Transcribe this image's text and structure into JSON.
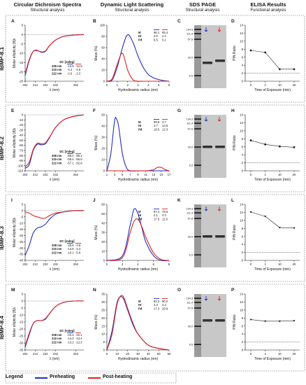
{
  "columns": [
    {
      "title": "Circular Dichroism Spectra",
      "subtitle": "Structural analysis"
    },
    {
      "title": "Dynamic Light Scattering",
      "subtitle": "Structural analysis"
    },
    {
      "title": "SDS PAGE",
      "subtitle": "Structural analysis"
    },
    {
      "title": "ELISA Results",
      "subtitle": "Functional analysis"
    }
  ],
  "rows": [
    {
      "label": "IBMP-8.1",
      "panels": [
        "A",
        "B",
        "C",
        "D"
      ]
    },
    {
      "label": "IBMP-8.2",
      "panels": [
        "E",
        "F",
        "G",
        "H"
      ]
    },
    {
      "label": "IBMP-8.3",
      "panels": [
        "I",
        "J",
        "K",
        "L"
      ]
    },
    {
      "label": "IBMP-8.4",
      "panels": [
        "M",
        "N",
        "O",
        "P"
      ]
    }
  ],
  "legend": {
    "title": "Legend",
    "items": [
      {
        "label": "Preheating",
        "color": "#1f2fbf"
      },
      {
        "label": "Post-heating",
        "color": "#e02020"
      }
    ]
  },
  "colors": {
    "pre": "#1f2fbf",
    "post": "#e02020"
  },
  "chart_data": [
    {
      "type": "line",
      "panel": "A",
      "row": "IBMP-8.1",
      "ylabel": "Molar ellipticity [θ]λ",
      "xlabel": "λ (nm)",
      "xlim": [
        202,
        260
      ],
      "ylim": [
        -25,
        5
      ],
      "xticks": [
        202,
        212,
        222,
        232,
        252
      ],
      "yticks": [
        5,
        0,
        -5,
        -10,
        -15,
        -20,
        -25
      ],
      "x": [
        202,
        206,
        210,
        214,
        218,
        222,
        226,
        232,
        240,
        250,
        260
      ],
      "series": [
        {
          "name": "Preheating",
          "values": [
            -22,
            -14,
            -9,
            -8.5,
            -9.5,
            -9,
            -6,
            -3,
            -1,
            -0.3,
            0
          ]
        },
        {
          "name": "Post-heating",
          "values": [
            -21,
            -13.5,
            -9,
            -8.7,
            -9.3,
            -8.8,
            -6,
            -3,
            -1,
            -0.3,
            0
          ]
        }
      ],
      "dc_table": {
        "header": "DC [mdeg]",
        "rows": [
          [
            "208 nm",
            "-13.5",
            "-12.9"
          ],
          [
            "215 nm",
            "-4.4",
            "-4.6"
          ],
          [
            "222 nm",
            "-2.6",
            "-2.3"
          ]
        ]
      }
    },
    {
      "type": "line",
      "panel": "B",
      "row": "IBMP-8.1",
      "ylabel": "Mass (%)",
      "xlabel": "Hydrodinamic radius (nm)",
      "xlim": [
        0,
        6
      ],
      "ylim": [
        0,
        100
      ],
      "xticks": [
        0,
        1,
        2,
        3,
        4,
        5,
        6
      ],
      "yticks": [
        0,
        20,
        40,
        60,
        80,
        100
      ],
      "x": [
        0,
        0.5,
        1,
        1.5,
        2,
        2.5,
        3,
        3.5,
        4,
        4.5,
        5,
        5.5,
        6
      ],
      "series": [
        {
          "name": "Preheating",
          "values": [
            0,
            2,
            25,
            60,
            83,
            70,
            45,
            25,
            12,
            6,
            3,
            1,
            0
          ]
        },
        {
          "name": "Post-heating",
          "values": [
            0,
            4,
            30,
            50,
            20,
            3,
            0,
            0,
            0,
            0,
            0,
            0,
            0
          ]
        }
      ],
      "stats": {
        "rows": [
          [
            "M",
            "96.1",
            "65.4"
          ],
          [
            "Hr",
            "2.8",
            "2.4"
          ],
          [
            "Pd",
            "6.5",
            "5.1"
          ]
        ]
      }
    },
    {
      "type": "line",
      "panel": "D",
      "row": "IBMP-8.1",
      "ylabel": "P/N Ratio",
      "xlabel": "Time of Exposure (min)",
      "categories": [
        "0",
        "1",
        "10",
        "20"
      ],
      "ylim": [
        0,
        14
      ],
      "yticks": [
        0,
        2,
        4,
        6,
        8,
        10,
        12,
        14
      ],
      "cutoff": 2,
      "values": [
        7.7,
        7.2,
        3.0,
        3.0
      ]
    },
    {
      "type": "line",
      "panel": "E",
      "row": "IBMP-8.2",
      "ylabel": "Molar ellipticity [θ]λ",
      "xlabel": "λ (nm)",
      "xlim": [
        202,
        260
      ],
      "ylim": [
        -110,
        0
      ],
      "xticks": [
        202,
        212,
        222,
        232,
        252
      ],
      "yticks": [
        0,
        -10,
        -20,
        -30,
        -40,
        -50,
        -60,
        -70,
        -80,
        -90,
        -100,
        -110
      ],
      "x": [
        202,
        206,
        210,
        214,
        218,
        222,
        226,
        232,
        240,
        250,
        260
      ],
      "series": [
        {
          "name": "Preheating",
          "values": [
            -105,
            -98,
            -70,
            -58,
            -59,
            -57,
            -45,
            -25,
            -10,
            -3,
            0
          ]
        },
        {
          "name": "Post-heating",
          "values": [
            -102,
            -93,
            -68,
            -56,
            -57,
            -55,
            -44,
            -25,
            -10,
            -3,
            0
          ]
        }
      ],
      "dc_table": {
        "header": "DC [mdeg]",
        "rows": [
          [
            "208 nm",
            "-88.4",
            "-85.1"
          ],
          [
            "215 nm",
            "-58.4",
            "-55.9"
          ],
          [
            "222 nm",
            "-57.1",
            "-52.8"
          ]
        ]
      }
    },
    {
      "type": "line",
      "panel": "F",
      "row": "IBMP-8.2",
      "ylabel": "Mass (%)",
      "xlabel": "Hydrodinamic radius (nm)",
      "xlim": [
        1,
        17
      ],
      "ylim": [
        0,
        50
      ],
      "xticks": [
        1,
        3,
        5,
        7,
        9,
        11,
        13,
        15,
        17
      ],
      "yticks": [
        0,
        10,
        20,
        30,
        40,
        50
      ],
      "x": [
        1,
        2,
        3,
        3.5,
        4,
        5,
        6,
        7,
        9,
        11,
        13,
        14,
        15,
        16,
        17
      ],
      "series": [
        {
          "name": "Preheating",
          "values": [
            0,
            15,
            45,
            46,
            40,
            15,
            3,
            0,
            0,
            0,
            0,
            0,
            0,
            0,
            0
          ]
        },
        {
          "name": "Post-heating",
          "values": [
            0,
            0,
            0,
            0,
            0,
            0,
            0,
            0,
            0,
            0,
            1,
            3,
            3,
            1,
            0
          ]
        }
      ],
      "stats": {
        "rows": [
          [
            "M",
            "99.8",
            "4.7"
          ],
          [
            "Hr",
            "3.7",
            "12.5"
          ],
          [
            "Pd",
            "18.5",
            "12.3"
          ]
        ]
      }
    },
    {
      "type": "line",
      "panel": "H",
      "row": "IBMP-8.2",
      "ylabel": "P/N Ratio",
      "xlabel": "Time of Exposure (min)",
      "categories": [
        "0",
        "1",
        "10",
        "20"
      ],
      "ylim": [
        0,
        14
      ],
      "yticks": [
        0,
        2,
        4,
        6,
        8,
        10,
        12,
        14
      ],
      "cutoff": 2,
      "values": [
        7.6,
        6.6,
        6.1,
        5.9
      ]
    },
    {
      "type": "line",
      "panel": "I",
      "row": "IBMP-8.3",
      "ylabel": "Molar ellipticity [θ]λ",
      "xlabel": "λ (nm)",
      "xlim": [
        202,
        260
      ],
      "ylim": [
        -40,
        5
      ],
      "xticks": [
        202,
        212,
        222,
        232,
        252
      ],
      "yticks": [
        5,
        0,
        -5,
        -10,
        -15,
        -20,
        -25,
        -30,
        -35,
        -40
      ],
      "x": [
        202,
        206,
        210,
        214,
        218,
        222,
        226,
        232,
        240,
        250,
        260
      ],
      "series": [
        {
          "name": "Preheating",
          "values": [
            -36,
            -28,
            -18,
            -14,
            -13,
            -11,
            -7,
            -3,
            -1,
            0,
            0
          ]
        },
        {
          "name": "Post-heating",
          "values": [
            -1,
            -2,
            -4,
            -5,
            -6,
            -6,
            -4,
            -2,
            -1,
            0,
            0
          ]
        }
      ],
      "dc_table": {
        "header": "DC [mdeg]",
        "rows": [
          [
            "208 nm",
            "-25.6",
            "-4.6"
          ],
          [
            "215 nm",
            "-13.8",
            "-4.3"
          ],
          [
            "222 nm",
            "-10.1",
            "-5.0"
          ]
        ]
      }
    },
    {
      "type": "line",
      "panel": "J",
      "row": "IBMP-8.3",
      "ylabel": "Mass (%)",
      "xlabel": "Hydrodinamic radius (nm)",
      "xlim": [
        0,
        8
      ],
      "ylim": [
        0,
        60
      ],
      "xticks": [
        0,
        2,
        4,
        6,
        8
      ],
      "yticks": [
        0,
        10,
        20,
        30,
        40,
        50,
        60
      ],
      "x": [
        0,
        2,
        3,
        3.5,
        4,
        4.5,
        5,
        6,
        7,
        8
      ],
      "series": [
        {
          "name": "Preheating",
          "values": [
            0,
            5,
            38,
            55,
            50,
            35,
            20,
            5,
            0,
            0
          ]
        },
        {
          "name": "Post-heating",
          "values": [
            0,
            3,
            30,
            42,
            44,
            36,
            25,
            8,
            1,
            0
          ]
        }
      ],
      "stats": {
        "rows": [
          [
            "M",
            "97.4",
            "78.5"
          ],
          [
            "Hr",
            "4.1",
            "4.3"
          ],
          [
            "Pd",
            "17.5",
            "11.9"
          ]
        ]
      }
    },
    {
      "type": "line",
      "panel": "L",
      "row": "IBMP-8.3",
      "ylabel": "P/N Ratio",
      "xlabel": "Time of Exposure (min)",
      "categories": [
        "0",
        "1",
        "10",
        "20"
      ],
      "ylim": [
        0,
        14
      ],
      "yticks": [
        0,
        2,
        4,
        6,
        8,
        10,
        12,
        14
      ],
      "cutoff": 2,
      "values": [
        12.1,
        11.0,
        8.2,
        8.1
      ]
    },
    {
      "type": "line",
      "panel": "M",
      "row": "IBMP-8.4",
      "ylabel": "Molar ellipticity [θ]λ",
      "xlabel": "λ (nm)",
      "xlim": [
        202,
        260
      ],
      "ylim": [
        -35,
        5
      ],
      "xticks": [
        202,
        212,
        222,
        232,
        252
      ],
      "yticks": [
        5,
        0,
        -5,
        -10,
        -15,
        -20,
        -25,
        -30,
        -35
      ],
      "x": [
        202,
        206,
        210,
        214,
        218,
        222,
        226,
        232,
        240,
        250,
        260
      ],
      "series": [
        {
          "name": "Preheating",
          "values": [
            -33,
            -24,
            -16,
            -14,
            -14,
            -13,
            -9,
            -4,
            -1,
            0,
            0
          ]
        },
        {
          "name": "Post-heating",
          "values": [
            -32,
            -23,
            -16,
            -14,
            -14,
            -12.5,
            -9,
            -4,
            -1,
            0,
            0
          ]
        }
      ],
      "dc_table": {
        "header": "DC [mdeg]",
        "rows": [
          [
            "208 nm",
            "-22.3",
            "-22.1"
          ],
          [
            "215 nm",
            "-14.3",
            "-13.4"
          ],
          [
            "222 nm",
            "-13.2",
            "-12.3"
          ]
        ]
      }
    },
    {
      "type": "line",
      "panel": "N",
      "row": "IBMP-8.4",
      "ylabel": "Mass (%)",
      "xlabel": "Hydrodinamic radius (nm)",
      "xlim": [
        0,
        60
      ],
      "ylim": [
        0,
        35
      ],
      "xticks": [
        0,
        10,
        20,
        30,
        40,
        50,
        60
      ],
      "yticks": [
        0,
        5,
        10,
        15,
        20,
        25,
        30,
        35
      ],
      "x": [
        0,
        5,
        10,
        15,
        20,
        25,
        30,
        40,
        50,
        60
      ],
      "series": [
        {
          "name": "Preheating",
          "values": [
            0,
            12,
            30,
            33,
            25,
            16,
            10,
            3,
            1,
            0
          ]
        },
        {
          "name": "Post-heating",
          "values": [
            0,
            10,
            29,
            34,
            26,
            17,
            10,
            3,
            1,
            0
          ]
        }
      ],
      "stats": {
        "rows": [
          [
            "M",
            "92.2",
            "90.2"
          ],
          [
            "Hr",
            "4.3",
            "4.2"
          ],
          [
            "Pd",
            "17.3",
            "29.9"
          ]
        ]
      }
    },
    {
      "type": "line",
      "panel": "P",
      "row": "IBMP-8.4",
      "ylabel": "P/N Ratio",
      "xlabel": "Time of Exposure (min)",
      "categories": [
        "0",
        "1",
        "10",
        "20"
      ],
      "ylim": [
        0,
        14
      ],
      "yticks": [
        0,
        2,
        4,
        6,
        8,
        10,
        12,
        14
      ],
      "cutoff": 2,
      "values": [
        7.6,
        7.2,
        7.2,
        7.3
      ]
    }
  ],
  "gels": [
    {
      "panel": "C",
      "markers": [
        "194.3",
        "111.4",
        "57.8",
        "30.0",
        "6.5"
      ]
    },
    {
      "panel": "G",
      "markers": [
        "194.3",
        "111.4",
        "57.8",
        "30.0",
        "6.5"
      ]
    },
    {
      "panel": "K",
      "markers": [
        "194.3",
        "111.4",
        "57.8",
        "30.0",
        "6.5"
      ]
    },
    {
      "panel": "O",
      "markers": [
        "194.3",
        "111.4",
        "57.8",
        "30.0",
        "6.5"
      ]
    }
  ]
}
